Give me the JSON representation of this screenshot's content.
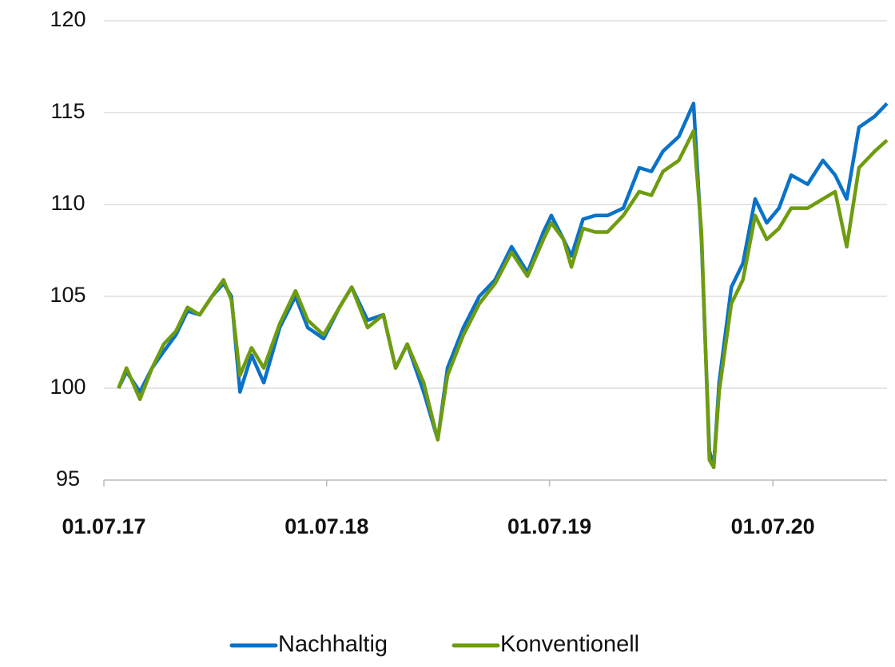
{
  "chart_data": {
    "type": "line",
    "x": [
      "25.07.17",
      "07.08.17",
      "29.08.17",
      "18.09.17",
      "07.10.17",
      "27.10.17",
      "15.11.17",
      "05.12.17",
      "25.12.17",
      "13.01.18",
      "26.01.18",
      "09.02.18",
      "28.02.18",
      "20.03.18",
      "15.04.18",
      "11.05.18",
      "31.05.18",
      "26.06.18",
      "22.07.18",
      "11.08.18",
      "06.09.18",
      "02.10.18",
      "22.10.18",
      "10.11.18",
      "07.12.18",
      "30.12.18",
      "15.01.19",
      "10.02.19",
      "08.03.19",
      "03.04.19",
      "30.04.19",
      "26.05.19",
      "21.06.19",
      "04.07.19",
      "24.07.19",
      "06.08.19",
      "25.08.19",
      "14.09.19",
      "04.10.19",
      "30.10.19",
      "25.11.19",
      "15.12.19",
      "03.01.20",
      "29.01.20",
      "22.02.20",
      "06.03.20",
      "19.03.20",
      "26.03.20",
      "04.04.20",
      "24.04.20",
      "13.05.20",
      "02.06.20",
      "21.06.20",
      "11.07.20",
      "31.07.20",
      "27.08.20",
      "21.09.20",
      "11.10.20",
      "30.10.20",
      "19.11.20",
      "15.12.20",
      "04.01.21"
    ],
    "series": [
      {
        "name": "Nachhaltig",
        "color": "#0a72c8",
        "values": [
          100.0,
          100.9,
          99.8,
          101.1,
          102.0,
          102.9,
          104.2,
          104.0,
          105.0,
          105.7,
          105.0,
          99.8,
          101.8,
          100.3,
          103.3,
          105.0,
          103.3,
          102.7,
          104.4,
          105.5,
          103.7,
          104.0,
          101.1,
          102.4,
          99.8,
          97.2,
          101.1,
          103.3,
          105.0,
          105.9,
          107.7,
          106.3,
          108.5,
          109.4,
          108.1,
          107.2,
          109.2,
          109.4,
          109.4,
          109.8,
          112.0,
          111.8,
          112.9,
          113.7,
          115.5,
          108.1,
          96.6,
          95.7,
          100.3,
          105.5,
          106.8,
          110.3,
          109.0,
          109.8,
          111.6,
          111.1,
          112.4,
          111.6,
          110.3,
          114.2,
          114.8,
          115.5
        ]
      },
      {
        "name": "Konventionell",
        "color": "#6e9c0e",
        "values": [
          100.0,
          101.1,
          99.4,
          101.1,
          102.4,
          103.1,
          104.4,
          104.0,
          105.0,
          105.9,
          104.8,
          100.7,
          102.2,
          101.1,
          103.5,
          105.3,
          103.7,
          102.9,
          104.4,
          105.5,
          103.3,
          104.0,
          101.1,
          102.4,
          100.3,
          97.2,
          100.7,
          102.9,
          104.6,
          105.7,
          107.4,
          106.1,
          108.1,
          109.0,
          108.1,
          106.6,
          108.7,
          108.5,
          108.5,
          109.4,
          110.7,
          110.5,
          111.8,
          112.4,
          114.0,
          108.5,
          96.1,
          95.7,
          99.8,
          104.6,
          105.9,
          109.4,
          108.1,
          108.7,
          109.8,
          109.8,
          110.3,
          110.7,
          107.7,
          112.0,
          112.9,
          113.5
        ]
      }
    ],
    "xlim": [
      "01.07.17",
      "04.01.21"
    ],
    "xticks": [
      "01.07.17",
      "01.07.18",
      "01.07.19",
      "01.07.20"
    ],
    "ylim": [
      95,
      120
    ],
    "yticks": [
      95,
      100,
      105,
      110,
      115,
      120
    ],
    "grid": true,
    "legend": "bottom"
  }
}
